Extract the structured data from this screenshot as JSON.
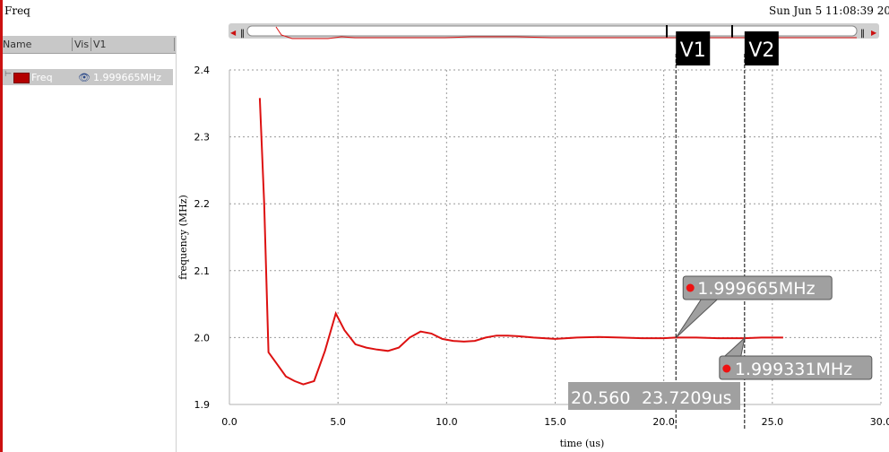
{
  "window": {
    "title": "Freq",
    "timestamp": "Sun Jun 5 11:08:39 20"
  },
  "signal_panel": {
    "columns": [
      "Name",
      "Vis",
      "V1"
    ],
    "signals": [
      {
        "name": "Freq",
        "color": "#b30000",
        "visibility_icon": "eye-icon",
        "v1_value": "1.999665MHz"
      }
    ]
  },
  "colors": {
    "trace": "#dd1111",
    "marker_bg": "#000000",
    "label_bg": "#a0a0a0"
  },
  "chart_data": {
    "type": "line",
    "xlabel": "time (us)",
    "ylabel": "frequency (MHz)",
    "xlim": [
      0,
      30
    ],
    "ylim": [
      1.9,
      2.4
    ],
    "x_ticks": [
      "0.0",
      "5.0",
      "10.0",
      "15.0",
      "20.0",
      "25.0",
      "30.0"
    ],
    "y_ticks": [
      "1.9",
      "2.0",
      "2.1",
      "2.2",
      "2.3",
      "2.4"
    ],
    "grid": true,
    "series": [
      {
        "name": "Freq",
        "x": [
          1.4,
          1.6,
          1.8,
          2.2,
          2.6,
          3.0,
          3.4,
          3.9,
          4.4,
          4.9,
          5.3,
          5.8,
          6.3,
          6.8,
          7.3,
          7.8,
          8.3,
          8.8,
          9.3,
          9.8,
          10.3,
          10.8,
          11.3,
          11.8,
          12.3,
          12.8,
          13.3,
          14.0,
          15.0,
          16.0,
          17.0,
          18.0,
          19.0,
          20.0,
          20.56,
          21.5,
          22.5,
          23.72,
          24.5,
          25.5
        ],
        "values": [
          2.358,
          2.2,
          1.978,
          1.96,
          1.942,
          1.935,
          1.93,
          1.935,
          1.98,
          2.036,
          2.011,
          1.99,
          1.985,
          1.982,
          1.98,
          1.985,
          2.0,
          2.009,
          2.006,
          1.998,
          1.995,
          1.994,
          1.995,
          2.0,
          2.003,
          2.003,
          2.002,
          2.0,
          1.998,
          2.0,
          2.001,
          2.0,
          1.999,
          1.999,
          2.0,
          2.0,
          1.999,
          1.999,
          2.0,
          2.0
        ]
      }
    ],
    "markers": [
      {
        "label": "V1",
        "x": 20.56
      },
      {
        "label": "V2",
        "x": 23.7209
      }
    ],
    "annotations": [
      {
        "text": "1.999665MHz",
        "x": 20.56,
        "y": 1.999665
      },
      {
        "text": "1.999331MHz",
        "x": 23.7209,
        "y": 1.999331
      }
    ],
    "cursor_readout": [
      "20.560",
      "23.7209us"
    ]
  }
}
